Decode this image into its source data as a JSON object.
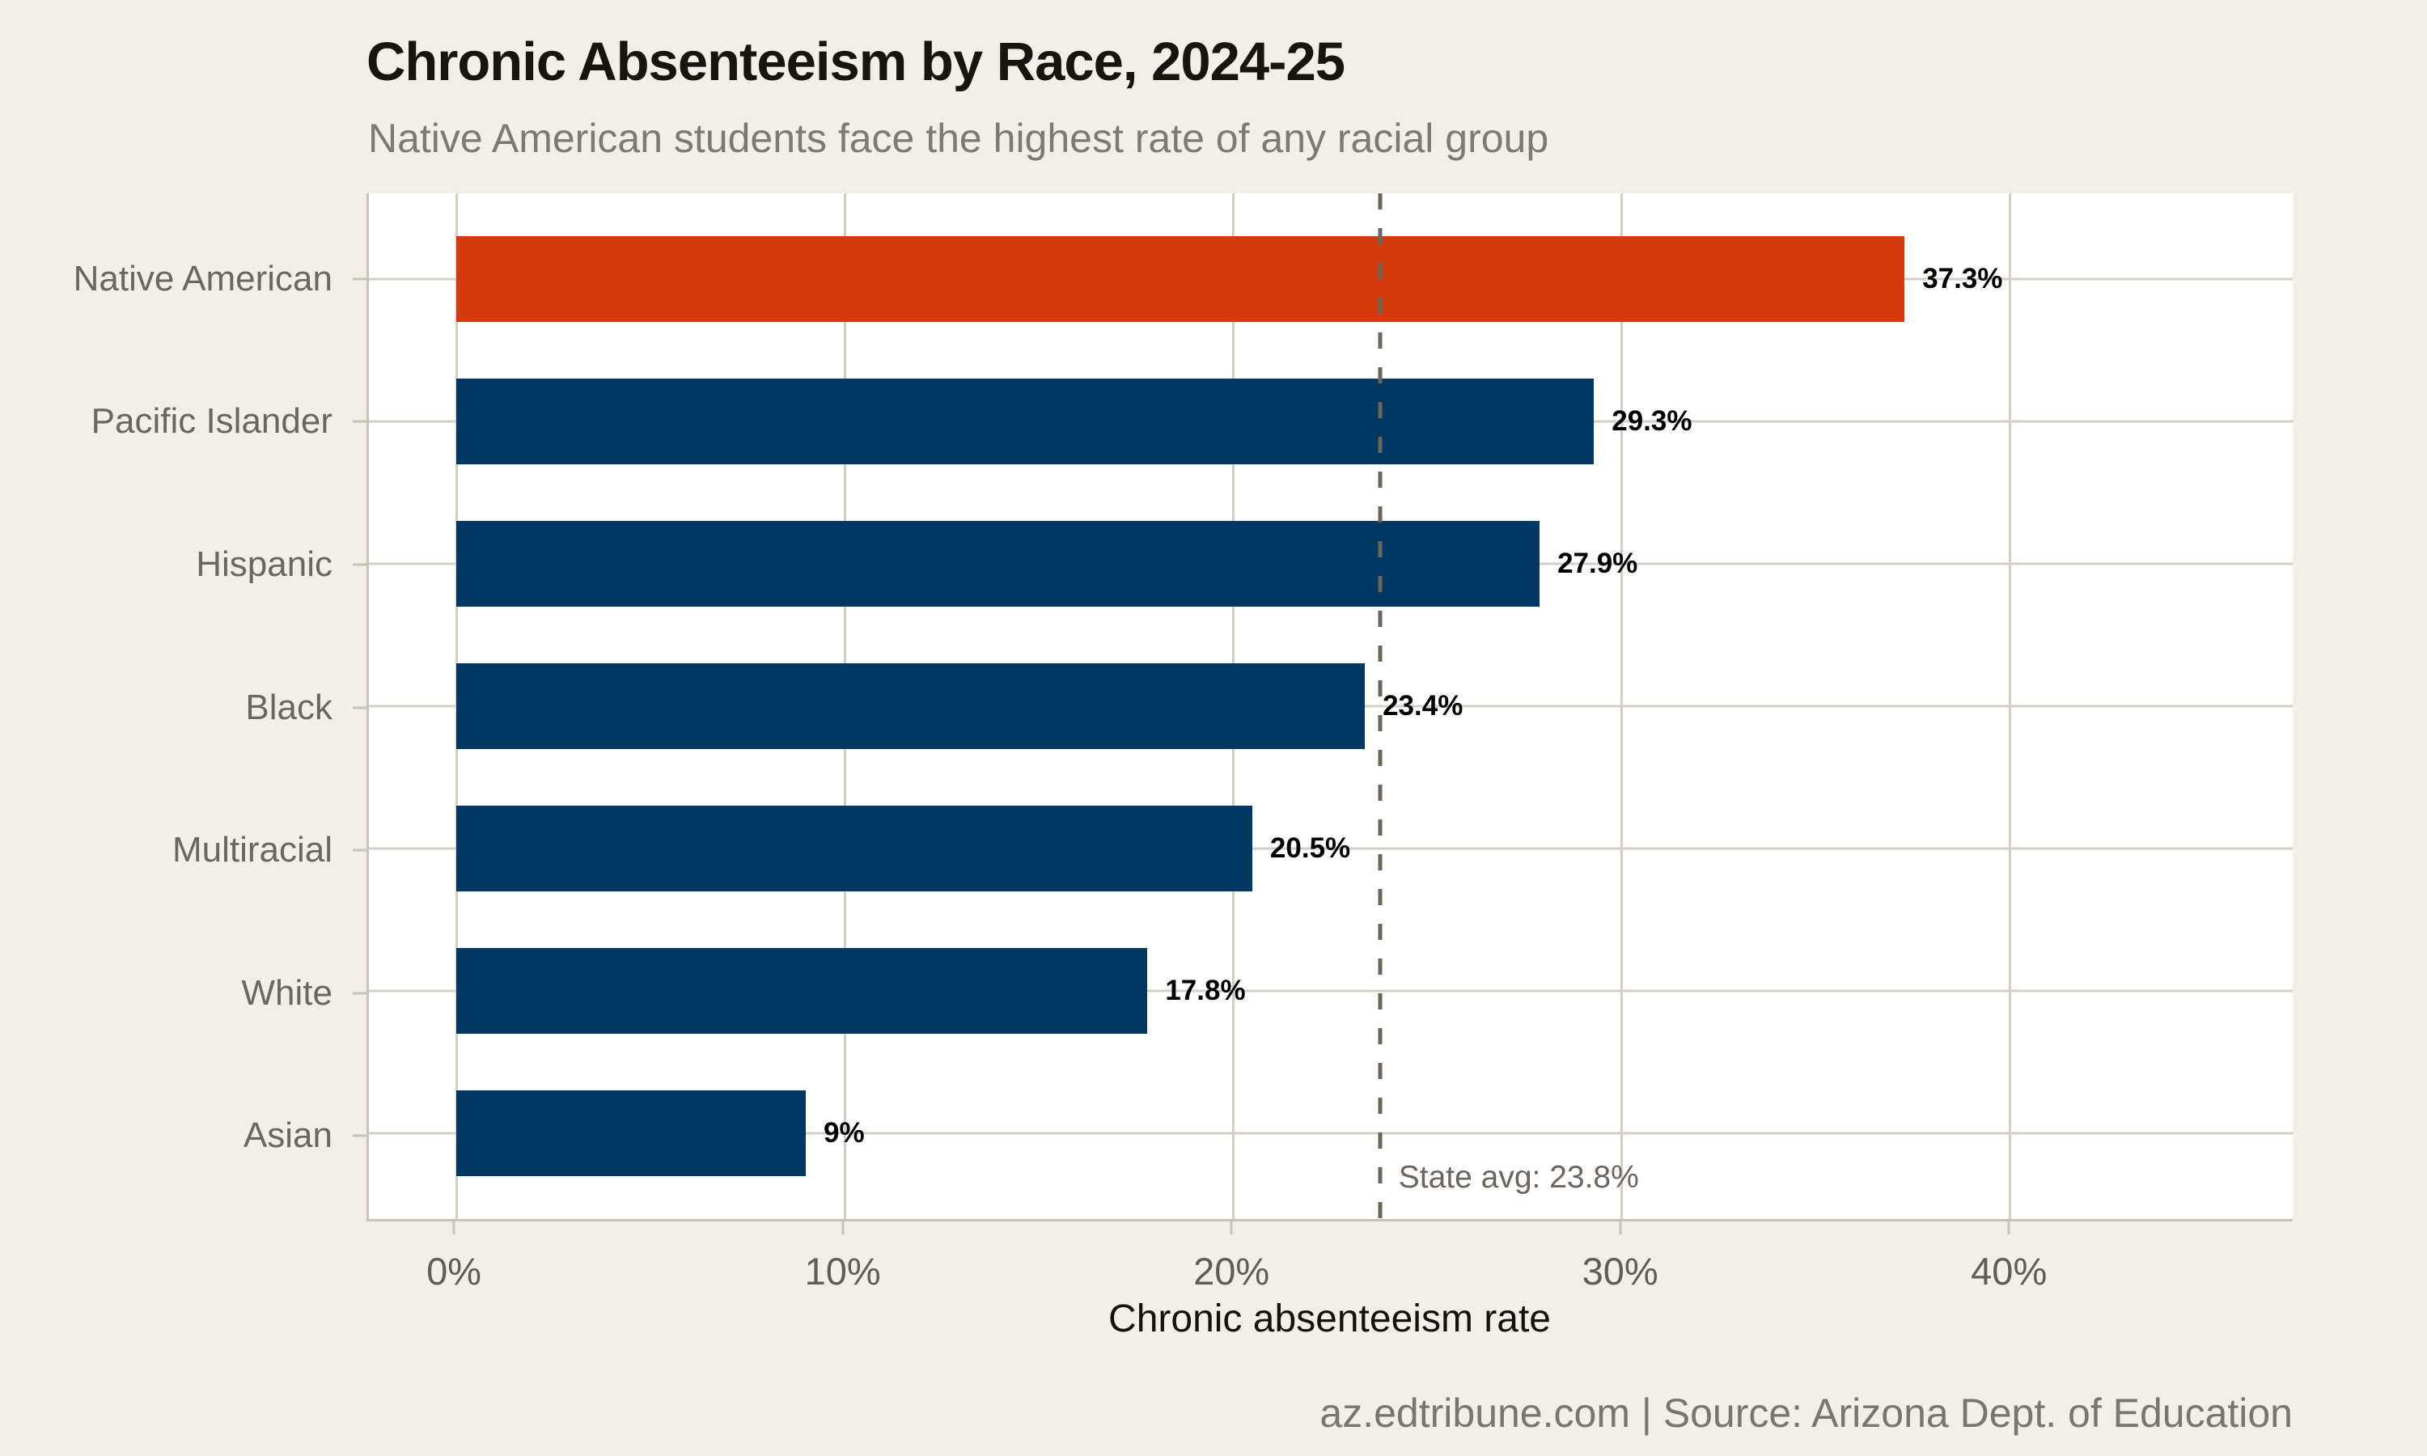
{
  "chart_data": {
    "type": "bar",
    "orientation": "horizontal",
    "title": "Chronic Absenteeism by Race, 2024-25",
    "subtitle": "Native American students face the highest rate of any racial group",
    "xlabel": "Chronic absenteeism rate",
    "categories": [
      "Native American",
      "Pacific Islander",
      "Hispanic",
      "Black",
      "Multiracial",
      "White",
      "Asian"
    ],
    "values": [
      37.3,
      29.3,
      27.9,
      23.4,
      20.5,
      17.8,
      9
    ],
    "value_labels": [
      "37.3%",
      "29.3%",
      "27.9%",
      "23.4%",
      "20.5%",
      "17.8%",
      "9%"
    ],
    "highlight_category": "Native American",
    "x_ticks": [
      "0%",
      "10%",
      "20%",
      "30%",
      "40%"
    ],
    "x_tick_values": [
      0,
      10,
      20,
      30,
      40
    ],
    "xlim": [
      -2.25,
      47.3
    ],
    "grid": true,
    "legend": false,
    "reference_line": {
      "value": 23.8,
      "label": "State avg: 23.8%"
    },
    "colors": {
      "bar": "#003863",
      "highlight": "#d33a0e",
      "reference": "#6b655b",
      "grid": "#d4cec5",
      "axis_line": "#c8c2b8",
      "background": "#f2efe9",
      "panel_background": "#ffffff",
      "title": "#18140f",
      "subtitle": "#7d7973",
      "category_label": "#6b6760",
      "tick_label": "#615c54",
      "axis_title": "#15120e",
      "value_label": "#000000",
      "footer": "#7b766d"
    }
  },
  "footer": {
    "credit": "az.edtribune.com | Source: Arizona Dept. of Education"
  }
}
